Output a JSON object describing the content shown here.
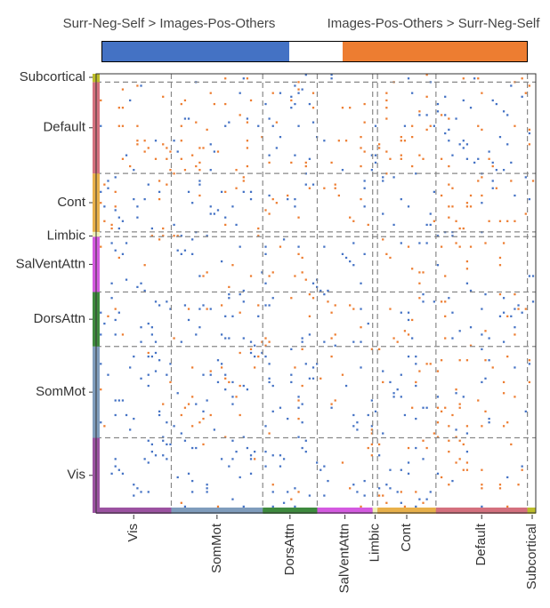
{
  "legend": {
    "left_label": "Surr-Neg-Self > Images-Pos-Others",
    "right_label": "Images-Pos-Others > Surr-Neg-Self",
    "left_color": "#4472c4",
    "mid_color": "#ffffff",
    "right_color": "#ed7d31",
    "split": [
      0,
      0.44,
      0.565,
      1
    ]
  },
  "chart_data": {
    "type": "heatmap",
    "title": "",
    "xlabel": "",
    "ylabel": "",
    "x_axis_order": [
      "Vis",
      "SomMot",
      "DorsAttn",
      "SalVentAttn",
      "Limbic",
      "Cont",
      "Default",
      "Subcortical"
    ],
    "y_axis_order_top_to_bottom": [
      "Subcortical",
      "Default",
      "Cont",
      "Limbic",
      "SalVentAttn",
      "DorsAttn",
      "SomMot",
      "Vis"
    ],
    "network_size_fractions": {
      "Vis": 0.171,
      "SomMot": 0.208,
      "DorsAttn": 0.124,
      "SalVentAttn": 0.126,
      "Limbic": 0.011,
      "Cont": 0.133,
      "Default": 0.208,
      "Subcortical": 0.019
    },
    "network_colors": {
      "Vis": "#9b52a1",
      "SomMot": "#7f9cbc",
      "DorsAttn": "#3e8a3e",
      "SalVentAttn": "#d45ae0",
      "Limbic": "#f0f0b8",
      "Cont": "#e8b04a",
      "Default": "#d4707e",
      "Subcortical": "#bdbd2a"
    },
    "cell_values": [
      -1,
      0,
      1
    ],
    "grid_lines": "dashed"
  }
}
